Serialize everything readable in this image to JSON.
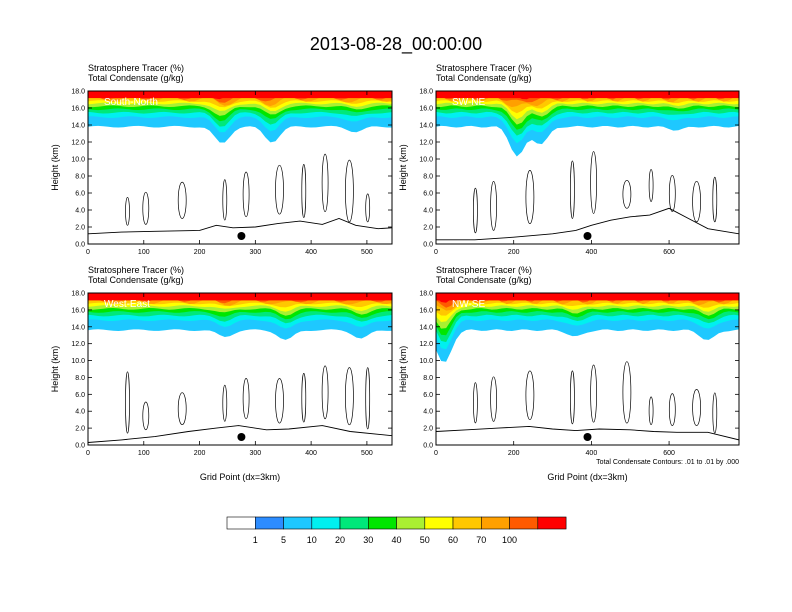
{
  "chart_data": {
    "type": "heatmap",
    "title": "2013-08-28_00:00:00",
    "variables": [
      "Stratosphere Tracer   (%)",
      "Total Condensate   (g/kg)"
    ],
    "note": "Total Condensate Contours: .01 to .01 by .000",
    "colorbar": {
      "levels": [
        "1",
        "5",
        "10",
        "20",
        "30",
        "40",
        "50",
        "60",
        "70",
        "100"
      ],
      "colors": [
        "#ffffff",
        "#2d8cff",
        "#1ec8ff",
        "#00f0f0",
        "#00e87a",
        "#00e600",
        "#aaf032",
        "#ffff00",
        "#ffc800",
        "#ffa000",
        "#ff5a00",
        "#ff0000"
      ]
    },
    "panels": [
      {
        "name": "South-North",
        "ylabel": "Height (km)",
        "xlabel": "",
        "xlim": [
          0,
          545
        ],
        "ylim": [
          0,
          18
        ],
        "xticks": [
          "0",
          "100",
          "200",
          "300",
          "400",
          "500"
        ],
        "xtick_values": [
          0,
          100,
          200,
          300,
          400,
          500
        ],
        "yticks": [
          "0.0",
          "2.0",
          "4.0",
          "6.0",
          "8.0",
          "10.0",
          "12.0",
          "14.0",
          "16.0",
          "18.0"
        ],
        "tracer_base_km": 13.8,
        "dips": [
          {
            "x": 240,
            "depth": 2.0
          },
          {
            "x": 330,
            "depth": 1.8
          },
          {
            "x": 480,
            "depth": 0.6
          }
        ],
        "terrain": [
          [
            0,
            1.2
          ],
          [
            60,
            1.4
          ],
          [
            120,
            1.5
          ],
          [
            200,
            1.6
          ],
          [
            230,
            2.2
          ],
          [
            260,
            1.9
          ],
          [
            300,
            2.0
          ],
          [
            340,
            2.4
          ],
          [
            380,
            2.7
          ],
          [
            420,
            2.3
          ],
          [
            450,
            3.0
          ],
          [
            480,
            2.2
          ],
          [
            520,
            1.8
          ],
          [
            545,
            1.9
          ]
        ],
        "marker_x": 275
      },
      {
        "name": "SW-NE",
        "ylabel": "Height (km)",
        "xlabel": "",
        "xlim": [
          0,
          780
        ],
        "ylim": [
          0,
          18
        ],
        "xticks": [
          "0",
          "200",
          "400",
          "600"
        ],
        "xtick_values": [
          0,
          200,
          400,
          600
        ],
        "yticks": [
          "0.0",
          "2.0",
          "4.0",
          "6.0",
          "8.0",
          "10.0",
          "12.0",
          "14.0",
          "16.0",
          "18.0"
        ],
        "tracer_base_km": 13.8,
        "dips": [
          {
            "x": 210,
            "depth": 3.5
          },
          {
            "x": 270,
            "depth": 2.0
          },
          {
            "x": 620,
            "depth": 0.4
          }
        ],
        "terrain": [
          [
            0,
            0.5
          ],
          [
            100,
            0.5
          ],
          [
            200,
            0.8
          ],
          [
            300,
            1.2
          ],
          [
            360,
            1.6
          ],
          [
            400,
            2.2
          ],
          [
            450,
            2.8
          ],
          [
            500,
            3.2
          ],
          [
            550,
            3.4
          ],
          [
            600,
            4.2
          ],
          [
            650,
            3.0
          ],
          [
            700,
            1.8
          ],
          [
            780,
            1.2
          ]
        ],
        "marker_x": 390
      },
      {
        "name": "West-East",
        "ylabel": "Height (km)",
        "xlabel": "Grid Point (dx=3km)",
        "xlim": [
          0,
          545
        ],
        "ylim": [
          0,
          18
        ],
        "xticks": [
          "0",
          "100",
          "200",
          "300",
          "400",
          "500"
        ],
        "xtick_values": [
          0,
          100,
          200,
          300,
          400,
          500
        ],
        "yticks": [
          "0.0",
          "2.0",
          "4.0",
          "6.0",
          "8.0",
          "10.0",
          "12.0",
          "14.0",
          "16.0",
          "18.0"
        ],
        "tracer_base_km": 13.6,
        "dips": [
          {
            "x": 245,
            "depth": 0.8
          },
          {
            "x": 355,
            "depth": 1.2
          },
          {
            "x": 490,
            "depth": 1.0
          }
        ],
        "terrain": [
          [
            0,
            0.3
          ],
          [
            60,
            0.6
          ],
          [
            120,
            1.0
          ],
          [
            180,
            1.6
          ],
          [
            230,
            2.0
          ],
          [
            270,
            2.3
          ],
          [
            320,
            1.8
          ],
          [
            360,
            1.9
          ],
          [
            420,
            2.3
          ],
          [
            470,
            1.6
          ],
          [
            545,
            1.1
          ]
        ],
        "marker_x": 275
      },
      {
        "name": "NW-SE",
        "ylabel": "Height (km)",
        "xlabel": "Grid Point (dx=3km)",
        "xlim": [
          0,
          780
        ],
        "ylim": [
          0,
          18
        ],
        "xticks": [
          "0",
          "200",
          "400",
          "600"
        ],
        "xtick_values": [
          0,
          200,
          400,
          600
        ],
        "yticks": [
          "0.0",
          "2.0",
          "4.0",
          "6.0",
          "8.0",
          "10.0",
          "12.0",
          "14.0",
          "16.0",
          "18.0"
        ],
        "tracer_base_km": 13.6,
        "dips": [
          {
            "x": 20,
            "depth": 4.0
          },
          {
            "x": 360,
            "depth": 0.8
          },
          {
            "x": 700,
            "depth": 1.2
          }
        ],
        "terrain": [
          [
            0,
            1.6
          ],
          [
            80,
            1.8
          ],
          [
            160,
            2.0
          ],
          [
            240,
            2.2
          ],
          [
            300,
            1.9
          ],
          [
            360,
            1.7
          ],
          [
            420,
            1.9
          ],
          [
            500,
            1.8
          ],
          [
            560,
            1.6
          ],
          [
            620,
            1.5
          ],
          [
            700,
            1.5
          ],
          [
            780,
            0.6
          ]
        ],
        "marker_x": 390
      }
    ]
  }
}
